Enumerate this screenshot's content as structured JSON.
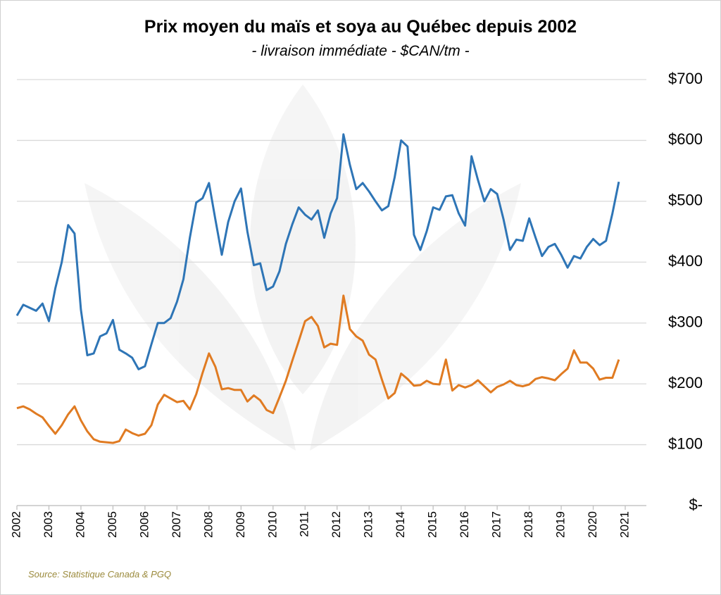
{
  "chart_data": {
    "type": "line",
    "title": "Prix moyen du maïs et soya au Québec depuis 2002",
    "subtitle": "- livraison immédiate - $CAN/tm -",
    "source": "Source: Statistique Canada & PGQ",
    "y_axis_position": "right",
    "grid": true,
    "xlim": [
      2002,
      2021
    ],
    "xticks": [
      2002,
      2003,
      2004,
      2005,
      2006,
      2007,
      2008,
      2009,
      2010,
      2011,
      2012,
      2013,
      2014,
      2015,
      2016,
      2017,
      2018,
      2019,
      2020,
      2021
    ],
    "ylim": [
      0,
      700
    ],
    "yticks": [
      {
        "value": 0,
        "label": "$-"
      },
      {
        "value": 100,
        "label": "$100"
      },
      {
        "value": 200,
        "label": "$200"
      },
      {
        "value": 300,
        "label": "$300"
      },
      {
        "value": 400,
        "label": "$400"
      },
      {
        "value": 500,
        "label": "$500"
      },
      {
        "value": 600,
        "label": "$600"
      },
      {
        "value": 700,
        "label": "$700"
      }
    ],
    "x": [
      2002,
      2002.2,
      2002.4,
      2002.6,
      2002.8,
      2003,
      2003.2,
      2003.4,
      2003.6,
      2003.8,
      2004,
      2004.2,
      2004.4,
      2004.6,
      2004.8,
      2005,
      2005.2,
      2005.4,
      2005.6,
      2005.8,
      2006,
      2006.2,
      2006.4,
      2006.6,
      2006.8,
      2007,
      2007.2,
      2007.4,
      2007.6,
      2007.8,
      2008,
      2008.2,
      2008.4,
      2008.6,
      2008.8,
      2009,
      2009.2,
      2009.4,
      2009.6,
      2009.8,
      2010,
      2010.2,
      2010.4,
      2010.6,
      2010.8,
      2011,
      2011.2,
      2011.4,
      2011.6,
      2011.8,
      2012,
      2012.2,
      2012.4,
      2012.6,
      2012.8,
      2013,
      2013.2,
      2013.4,
      2013.6,
      2013.8,
      2014,
      2014.2,
      2014.4,
      2014.6,
      2014.8,
      2015,
      2015.2,
      2015.4,
      2015.6,
      2015.8,
      2016,
      2016.2,
      2016.4,
      2016.6,
      2016.8,
      2017,
      2017.2,
      2017.4,
      2017.6,
      2017.8,
      2018,
      2018.2,
      2018.4,
      2018.6,
      2018.8,
      2019,
      2019.2,
      2019.4,
      2019.6,
      2019.8,
      2020,
      2020.2,
      2020.4,
      2020.6,
      2020.8
    ],
    "series": [
      {
        "color": "#2e75b6",
        "values": [
          312,
          330,
          325,
          320,
          332,
          303,
          357,
          400,
          461,
          447,
          322,
          247,
          250,
          278,
          283,
          305,
          256,
          250,
          243,
          224,
          229,
          265,
          300,
          300,
          308,
          335,
          372,
          440,
          498,
          505,
          530,
          470,
          412,
          466,
          500,
          521,
          450,
          395,
          398,
          354,
          360,
          385,
          430,
          462,
          490,
          478,
          470,
          485,
          440,
          480,
          505,
          610,
          560,
          520,
          530,
          516,
          500,
          485,
          492,
          540,
          600,
          590,
          445,
          420,
          451,
          490,
          486,
          508,
          510,
          480,
          460,
          574,
          535,
          500,
          520,
          512,
          470,
          420,
          437,
          435,
          472,
          440,
          410,
          425,
          430,
          412,
          391,
          410,
          406,
          425,
          438,
          428,
          435,
          480,
          532
        ]
      },
      {
        "color": "#e07b22",
        "values": [
          160,
          163,
          158,
          151,
          145,
          131,
          118,
          132,
          150,
          163,
          140,
          122,
          109,
          105,
          104,
          103,
          106,
          125,
          119,
          115,
          118,
          132,
          166,
          182,
          176,
          170,
          172,
          158,
          183,
          218,
          250,
          228,
          191,
          193,
          190,
          190,
          171,
          181,
          173,
          157,
          152,
          178,
          205,
          238,
          270,
          303,
          310,
          295,
          260,
          266,
          264,
          345,
          290,
          278,
          271,
          248,
          240,
          207,
          176,
          185,
          217,
          208,
          197,
          198,
          205,
          200,
          199,
          240,
          189,
          198,
          194,
          198,
          206,
          196,
          186,
          195,
          199,
          205,
          198,
          196,
          199,
          208,
          211,
          209,
          206,
          216,
          225,
          255,
          235,
          235,
          225,
          207,
          210,
          210,
          240
        ]
      }
    ]
  }
}
